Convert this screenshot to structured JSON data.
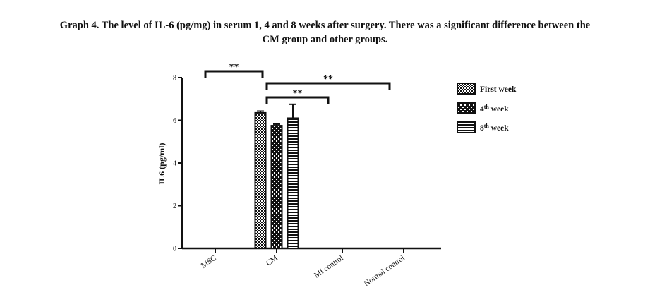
{
  "caption": {
    "line1": "Graph 4. The level of IL-6 (pg/mg) in serum 1, 4 and 8 weeks after surgery. There was a significant difference between the",
    "line2": "CM group and other groups."
  },
  "chart_data": {
    "type": "bar",
    "title": "",
    "xlabel": "",
    "ylabel": "IL6 (pg/ml)",
    "ylim": [
      0,
      8
    ],
    "yticks": [
      0,
      2,
      4,
      6,
      8
    ],
    "categories": [
      "MSC",
      "CM",
      "MI control",
      "Normal control"
    ],
    "series": [
      {
        "name": "First week",
        "values": [
          0,
          6.35,
          0,
          0
        ],
        "errors": [
          0,
          0.08,
          0,
          0
        ],
        "pattern": "checker-fine"
      },
      {
        "name": "4th week",
        "values": [
          0,
          5.75,
          0,
          0
        ],
        "errors": [
          0,
          0.07,
          0,
          0
        ],
        "pattern": "checker-coarse"
      },
      {
        "name": "8th week",
        "values": [
          0,
          6.1,
          0,
          0
        ],
        "errors": [
          0,
          0.65,
          0,
          0
        ],
        "pattern": "horizontal-stripes"
      }
    ],
    "significance": [
      {
        "from": "MSC",
        "to": "CM",
        "label": "**"
      },
      {
        "from": "CM",
        "to": "Normal control",
        "label": "**"
      },
      {
        "from": "CM",
        "to": "MI control",
        "label": "**"
      }
    ],
    "legend_position": "right"
  }
}
